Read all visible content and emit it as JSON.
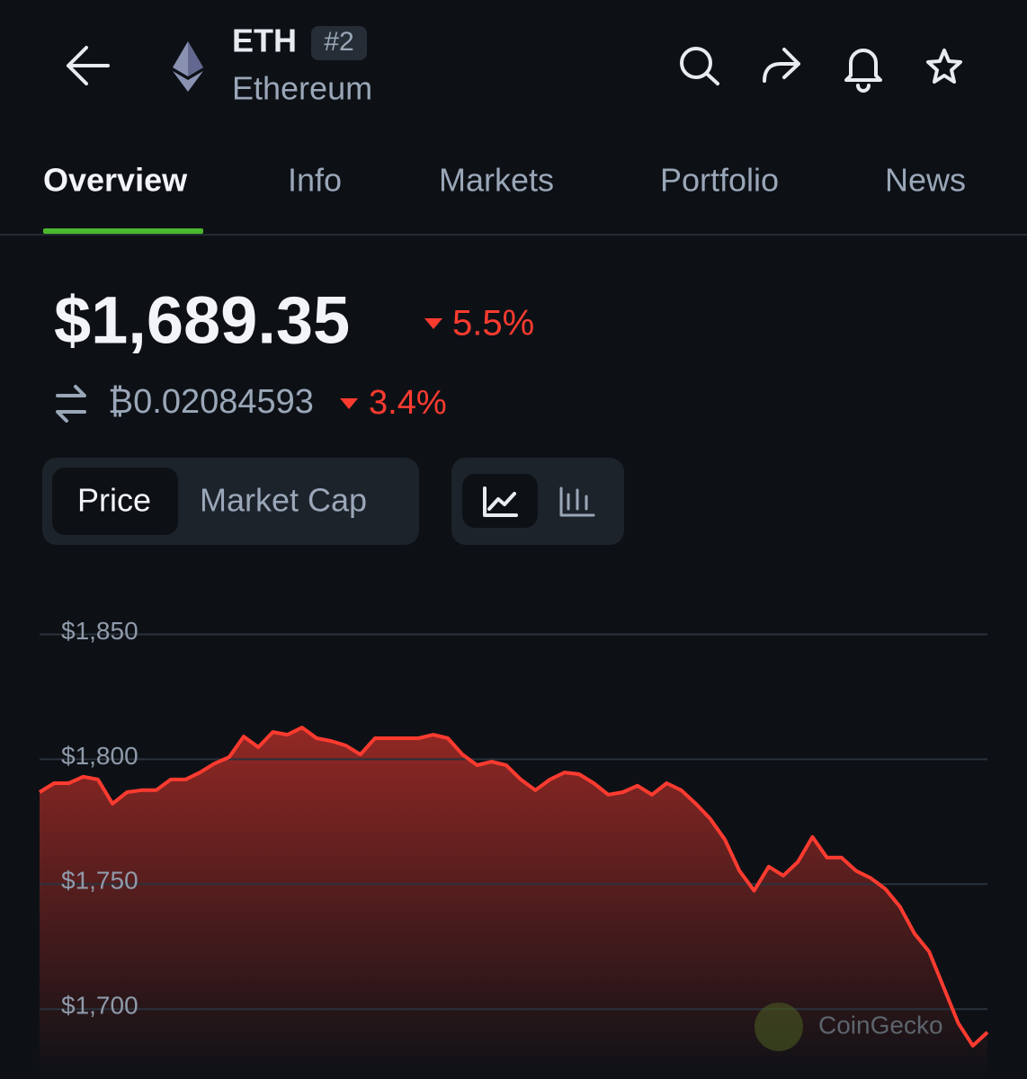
{
  "header": {
    "symbol": "ETH",
    "rank": "#2",
    "name": "Ethereum"
  },
  "tabs": [
    "Overview",
    "Info",
    "Markets",
    "Portfolio",
    "News"
  ],
  "price": {
    "usd": "$1,689.35",
    "usd_change": "5.5%",
    "btc": "₿0.02084593",
    "btc_change": "3.4%"
  },
  "chart_toggle": [
    "Price",
    "Market Cap"
  ],
  "watermark": "CoinGecko",
  "chart_data": {
    "type": "area",
    "color": "#ff3b30",
    "grid": true,
    "ylim": [
      1672,
      1866
    ],
    "yticks": [
      {
        "value": 1700,
        "label": "$1,700"
      },
      {
        "value": 1750,
        "label": "$1,750"
      },
      {
        "value": 1800,
        "label": "$1,800"
      },
      {
        "value": 1850,
        "label": "$1,850"
      }
    ],
    "values": [
      1786.8,
      1790.4,
      1790.4,
      1793,
      1791.9,
      1782.2,
      1786.8,
      1787.6,
      1787.6,
      1791.9,
      1791.9,
      1794.7,
      1798.3,
      1800.8,
      1809.1,
      1804.8,
      1810.9,
      1809.8,
      1812.7,
      1808.4,
      1807.3,
      1805.5,
      1801.9,
      1808.4,
      1808.4,
      1808.4,
      1808.4,
      1809.8,
      1808.4,
      1801.9,
      1797.6,
      1799,
      1797.6,
      1791.9,
      1787.6,
      1791.9,
      1794.7,
      1794,
      1790.4,
      1785.8,
      1786.8,
      1789.4,
      1785.8,
      1790.4,
      1787.6,
      1782.2,
      1776.1,
      1767.8,
      1755.3,
      1747.4,
      1757,
      1753.4,
      1758.9,
      1768.9,
      1760.6,
      1760.6,
      1755.3,
      1752.4,
      1748.1,
      1741,
      1730.2,
      1723,
      1708.6,
      1694.3,
      1685.3,
      1690.7
    ]
  }
}
